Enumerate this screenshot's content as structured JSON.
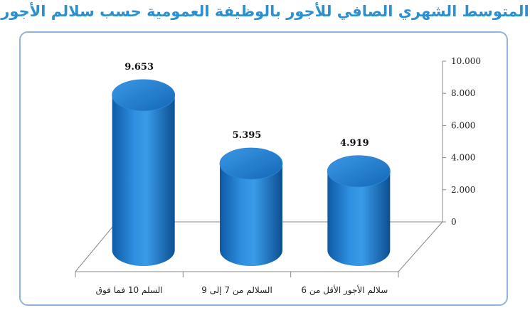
{
  "title": "المتوسط الشهري الصافي للأجور بالوظيفة العمومية حسب سلالم الأجور",
  "chart_data": {
    "type": "bar",
    "categories": [
      "السلم 10 فما فوق",
      "السلالم من 7 إلى 9",
      "سلالم الأجور الأقل من 6"
    ],
    "values": [
      9653,
      5395,
      4919
    ],
    "value_labels": [
      "9.653",
      "5.395",
      "4.919"
    ],
    "yticks": [
      "0",
      "2.000",
      "4.000",
      "6.000",
      "8.000",
      "10.000"
    ],
    "ylim": [
      0,
      10000
    ],
    "bar_color": "#1e78c8",
    "grid": false,
    "legend": "none"
  }
}
